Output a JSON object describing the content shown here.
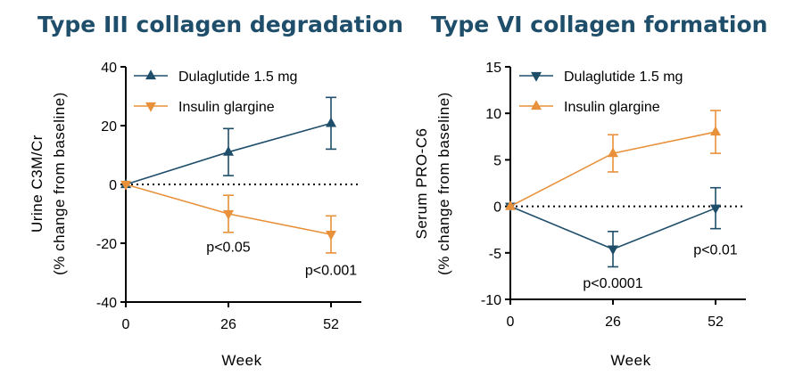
{
  "colors": {
    "dulaglutide": "#1f4e6b",
    "glargine": "#e8913a",
    "title": "#1f4e6b"
  },
  "chart_data": [
    {
      "type": "line",
      "title": "Type III collagen degradation",
      "xlabel": "Week",
      "ylabel_line1": "Urine C3M/Cr",
      "ylabel_line2": "(% change from baseline)",
      "x": [
        0,
        26,
        52
      ],
      "x_ticks": [
        "0",
        "26",
        "52"
      ],
      "ylim": [
        -40,
        40
      ],
      "y_ticks": [
        "40",
        "20",
        "0",
        "-20",
        "-40"
      ],
      "zero_dotted_line": true,
      "legend_position": "top-left",
      "series": [
        {
          "name": "Dulaglutide 1.5 mg",
          "marker": "triangle-up",
          "color": "#1f4e6b",
          "values": [
            0,
            11,
            20.8
          ],
          "error": [
            0,
            8,
            8.8
          ]
        },
        {
          "name": "Insulin glargine",
          "marker": "triangle-down",
          "color": "#e8913a",
          "values": [
            0,
            -10,
            -17
          ],
          "error": [
            0,
            6.3,
            6.3
          ]
        }
      ],
      "annotations": [
        {
          "text": "p<0.05",
          "x": 26,
          "y": -21
        },
        {
          "text": "p<0.001",
          "x": 52,
          "y": -29
        }
      ]
    },
    {
      "type": "line",
      "title": "Type VI collagen formation",
      "xlabel": "Week",
      "ylabel_line1": "Serum PRO-C6",
      "ylabel_line2": "(% change from baseline)",
      "x": [
        0,
        26,
        52
      ],
      "x_ticks": [
        "0",
        "26",
        "52"
      ],
      "ylim": [
        -10,
        15
      ],
      "y_ticks": [
        "15",
        "10",
        "5",
        "0",
        "-5",
        "-10"
      ],
      "zero_dotted_line": true,
      "legend_position": "top-left",
      "series": [
        {
          "name": "Dulaglutide 1.5 mg",
          "marker": "triangle-down",
          "color": "#1f4e6b",
          "values": [
            0,
            -4.6,
            -0.2
          ],
          "error": [
            0,
            1.9,
            2.2
          ]
        },
        {
          "name": "Insulin glargine",
          "marker": "triangle-up",
          "color": "#e8913a",
          "values": [
            0,
            5.7,
            8
          ],
          "error": [
            0,
            2.0,
            2.3
          ]
        }
      ],
      "annotations": [
        {
          "text": "p<0.0001",
          "x": 26,
          "y": -8.2
        },
        {
          "text": "p<0.01",
          "x": 52,
          "y": -4.6
        }
      ]
    }
  ]
}
